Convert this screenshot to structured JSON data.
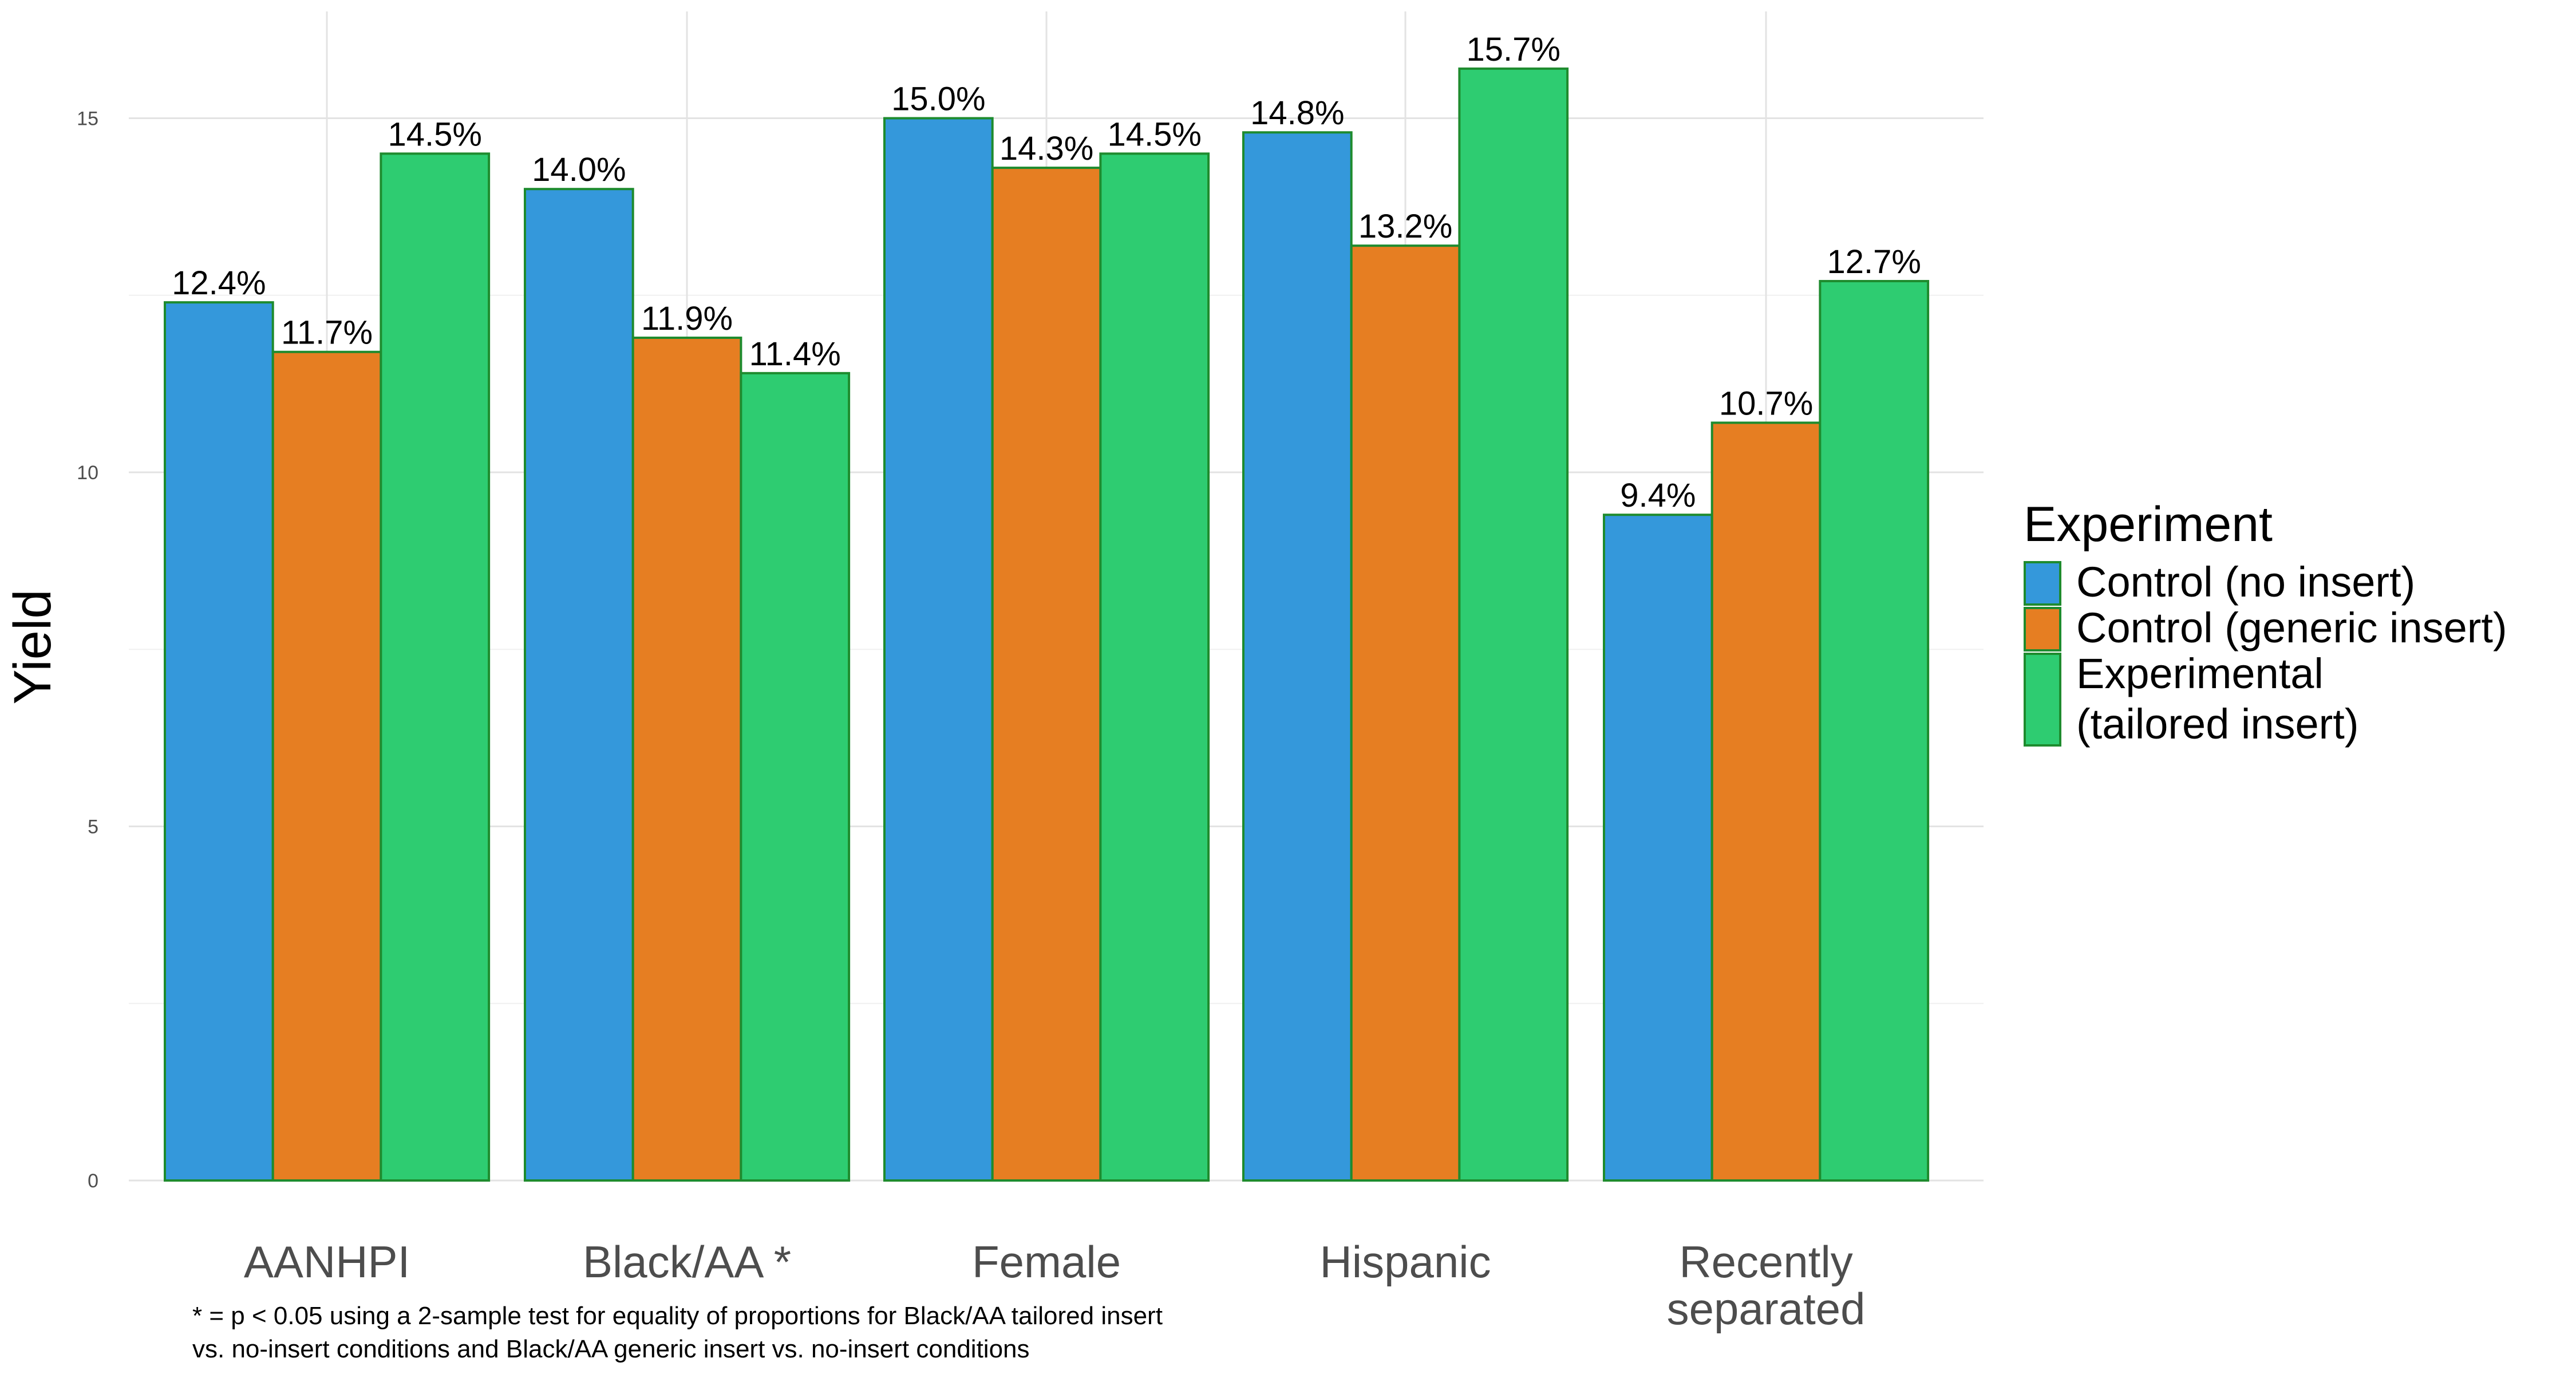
{
  "chart_data": {
    "type": "bar",
    "xlabel": "",
    "ylabel": "Yield",
    "ylim": [
      0,
      16.5
    ],
    "yticks": [
      0,
      5,
      10,
      15
    ],
    "grid": true,
    "legend_position": "right",
    "legend": {
      "title": "Experiment",
      "items": [
        {
          "label_lines": [
            "Control (no insert)"
          ],
          "color": "#3498db"
        },
        {
          "label_lines": [
            "Control (generic insert)"
          ],
          "color": "#e67e22"
        },
        {
          "label_lines": [
            "Experimental",
            "(tailored insert)"
          ],
          "color": "#2ecc71"
        }
      ]
    },
    "categories": [
      {
        "lines": [
          "AANHPI"
        ]
      },
      {
        "lines": [
          "Black/AA *"
        ]
      },
      {
        "lines": [
          "Female"
        ]
      },
      {
        "lines": [
          "Hispanic"
        ]
      },
      {
        "lines": [
          "Recently",
          "separated"
        ]
      }
    ],
    "series": [
      {
        "name": "Control (no insert)",
        "color": "#3498db",
        "values": [
          12.4,
          14.0,
          15.0,
          14.8,
          9.4
        ],
        "labels": [
          "12.4%",
          "14.0%",
          "15.0%",
          "14.8%",
          "9.4%"
        ]
      },
      {
        "name": "Control (generic insert)",
        "color": "#e67e22",
        "values": [
          11.7,
          11.9,
          14.3,
          13.2,
          10.7
        ],
        "labels": [
          "11.7%",
          "11.9%",
          "14.3%",
          "13.2%",
          "10.7%"
        ]
      },
      {
        "name": "Experimental (tailored insert)",
        "color": "#2ecc71",
        "values": [
          14.5,
          11.4,
          14.5,
          15.7,
          12.7
        ],
        "labels": [
          "14.5%",
          "11.4%",
          "14.5%",
          "15.7%",
          "12.7%"
        ]
      }
    ],
    "bar_outline_color": "#1e8b2e",
    "footnote": "* =  p < 0.05 using a 2-sample test for equality of proportions for Black/AA tailored insert\nvs. no-insert conditions and Black/AA generic insert vs. no-insert conditions"
  }
}
